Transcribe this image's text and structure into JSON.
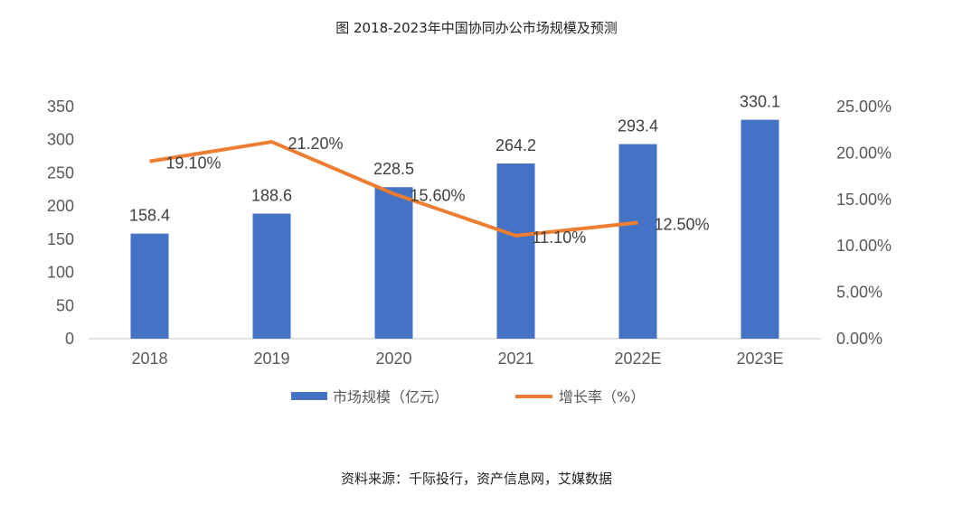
{
  "title": "图 2018-2023年中国协同办公市场规模及预测",
  "source": "资料来源：千际投行，资产信息网，艾媒数据",
  "chart_data": {
    "type": "bar+line",
    "categories": [
      "2018",
      "2019",
      "2020",
      "2021",
      "2022E",
      "2023E"
    ],
    "series": [
      {
        "name": "市场规模（亿元）",
        "type": "bar",
        "axis": "left",
        "color": "#4472C4",
        "values": [
          158.4,
          188.6,
          228.5,
          264.2,
          293.4,
          330.1
        ],
        "labels": [
          "158.4",
          "188.6",
          "228.5",
          "264.2",
          "293.4",
          "330.1"
        ]
      },
      {
        "name": "增长率（%）",
        "type": "line",
        "axis": "right",
        "color": "#ED7D31",
        "values": [
          19.1,
          21.2,
          15.6,
          11.1,
          12.5,
          null
        ],
        "labels": [
          "19.10%",
          "21.20%",
          "15.60%",
          "11.10%",
          "12.50%",
          null
        ]
      }
    ],
    "y_left": {
      "range": [
        0,
        350
      ],
      "ticks": [
        "0",
        "50",
        "100",
        "150",
        "200",
        "250",
        "300",
        "350"
      ]
    },
    "y_right": {
      "range": [
        0,
        25
      ],
      "ticks": [
        "0.00%",
        "5.00%",
        "10.00%",
        "15.00%",
        "20.00%",
        "25.00%"
      ]
    },
    "grid": false,
    "legend_placement": "bottom"
  }
}
